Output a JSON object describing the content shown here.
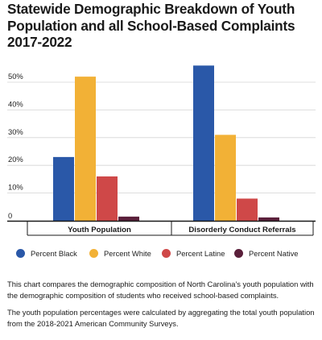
{
  "header": {
    "title": "Statewide Demographic Breakdown of Youth Population and all School-Based Complaints 2017-2022"
  },
  "chart_data": {
    "type": "bar",
    "title": "Statewide Demographic Breakdown of Youth Population and all School-Based Complaints 2017-2022",
    "categories": [
      "Youth Population",
      "Disorderly Conduct Referrals"
    ],
    "series": [
      {
        "name": "Percent Black",
        "color": "#2a58a8",
        "values": [
          23,
          56
        ]
      },
      {
        "name": "Percent White",
        "color": "#f2b136",
        "values": [
          52,
          31
        ]
      },
      {
        "name": "Percent Latine",
        "color": "#cf4848",
        "values": [
          16,
          8
        ]
      },
      {
        "name": "Percent Native",
        "color": "#5a1f3a",
        "values": [
          1.5,
          1.2
        ]
      }
    ],
    "yticks": [
      "0",
      "10%",
      "20%",
      "30%",
      "40%",
      "50%"
    ],
    "ylim": [
      0,
      60
    ],
    "grid": true,
    "legend_position": "bottom",
    "xlabel": "",
    "ylabel": ""
  },
  "legend": {
    "items": [
      {
        "label": "Percent Black",
        "color": "#2a58a8"
      },
      {
        "label": "Percent White",
        "color": "#f2b136"
      },
      {
        "label": "Percent Latine",
        "color": "#cf4848"
      },
      {
        "label": "Percent Native",
        "color": "#5a1f3a"
      }
    ]
  },
  "notes": {
    "paragraph1": "This chart compares the demographic composition of North Carolina's youth population with the demographic composition of students who received school-based complaints.",
    "paragraph2": "The youth population percentages were calculated by aggregating the total youth population from the 2018-2021 American Community Surveys."
  }
}
